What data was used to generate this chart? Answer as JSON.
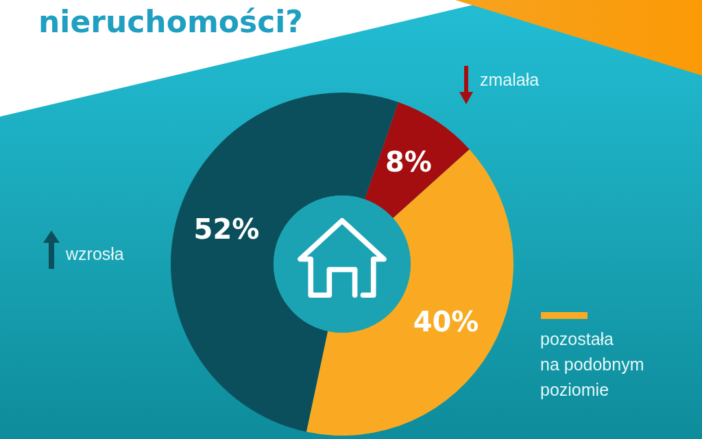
{
  "chart_data": {
    "type": "donut",
    "title": "nieruchomości?",
    "categories": [
      "wzrosła",
      "zmalała",
      "pozostała\nna podobnym\npoziomie"
    ],
    "values": [
      52,
      8,
      40
    ],
    "colors": [
      "#0b4f5c",
      "#a50e10",
      "#f9aa22"
    ],
    "value_labels": [
      "52%",
      "8%",
      "40%"
    ],
    "legend": "top left"
  }
}
